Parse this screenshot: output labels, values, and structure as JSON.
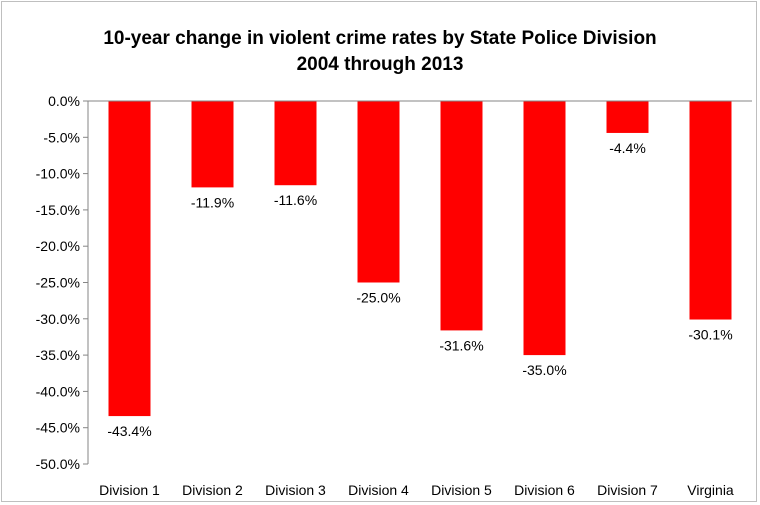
{
  "chart_data": {
    "type": "bar",
    "title": "10-year change in violent crime rates by State Police Division",
    "subtitle": "2004 through 2013",
    "xlabel": "",
    "ylabel": "",
    "categories": [
      "Division 1",
      "Division 2",
      "Division 3",
      "Division 4",
      "Division 5",
      "Division 6",
      "Division 7",
      "Virginia"
    ],
    "values": [
      -43.4,
      -11.9,
      -11.6,
      -25.0,
      -31.6,
      -35.0,
      -4.4,
      -30.1
    ],
    "data_labels": [
      "-43.4%",
      "-11.9%",
      "-11.6%",
      "-25.0%",
      "-31.6%",
      "-35.0%",
      "-4.4%",
      "-30.1%"
    ],
    "ylim": [
      -50,
      0
    ],
    "y_ticks": [
      0,
      -5,
      -10,
      -15,
      -20,
      -25,
      -30,
      -35,
      -40,
      -45,
      -50
    ],
    "y_tick_labels": [
      "0.0%",
      "-5.0%",
      "-10.0%",
      "-15.0%",
      "-20.0%",
      "-25.0%",
      "-30.0%",
      "-35.0%",
      "-40.0%",
      "-45.0%",
      "-50.0%"
    ],
    "grid": false,
    "legend": "none",
    "bar_color": "#ff0000",
    "axis_color": "#868686",
    "text_color": "#000000"
  }
}
